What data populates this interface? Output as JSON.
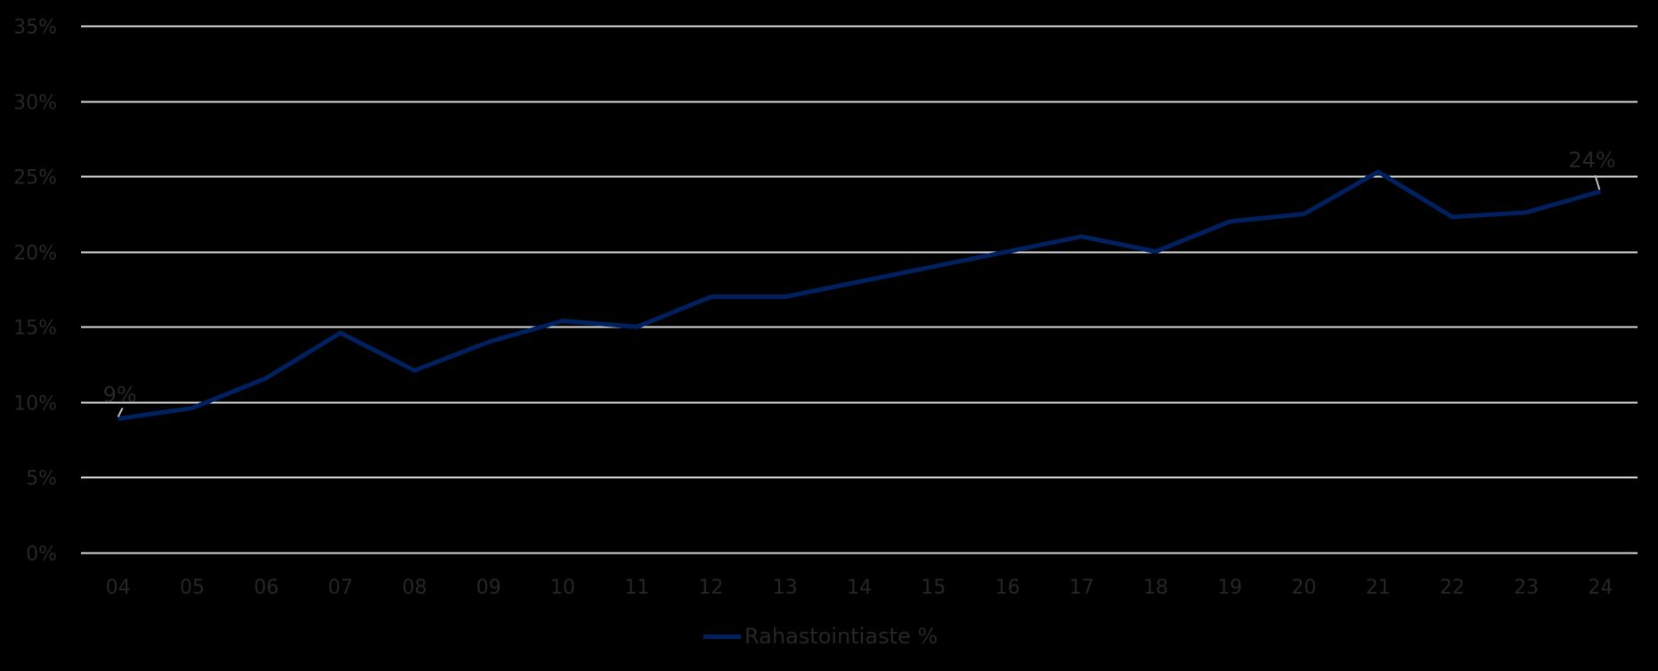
{
  "chart_data": {
    "type": "line",
    "title": "",
    "xlabel": "",
    "ylabel": "",
    "categories": [
      "04",
      "05",
      "06",
      "07",
      "08",
      "09",
      "10",
      "11",
      "12",
      "13",
      "14",
      "15",
      "16",
      "17",
      "18",
      "19",
      "20",
      "21",
      "22",
      "23",
      "24"
    ],
    "series": [
      {
        "name": "Rahastointiaste %",
        "color": "#002060",
        "values": [
          8.9,
          9.6,
          11.6,
          14.6,
          12.1,
          14.0,
          15.4,
          15.0,
          17.0,
          17.0,
          18.0,
          19.0,
          20.0,
          21.0,
          20.0,
          22.0,
          22.5,
          25.3,
          22.3,
          22.6,
          24.0
        ]
      }
    ],
    "ylim": [
      0,
      35
    ],
    "yticks": [
      0,
      5,
      10,
      15,
      20,
      25,
      30,
      35
    ],
    "ytick_labels": [
      "0%",
      "5%",
      "10%",
      "15%",
      "20%",
      "25%",
      "30%",
      "35%"
    ],
    "grid": "horizontal",
    "legend_position": "bottom",
    "annotations": [
      {
        "category": "04",
        "text": "9%"
      },
      {
        "category": "24",
        "text": "24%"
      }
    ],
    "colors": {
      "background": "#000000",
      "gridline": "#d9d9d9",
      "text": "#262626",
      "leader_line": "#bfbfbf"
    }
  },
  "legend": {
    "label": "Rahastointiaste %"
  }
}
